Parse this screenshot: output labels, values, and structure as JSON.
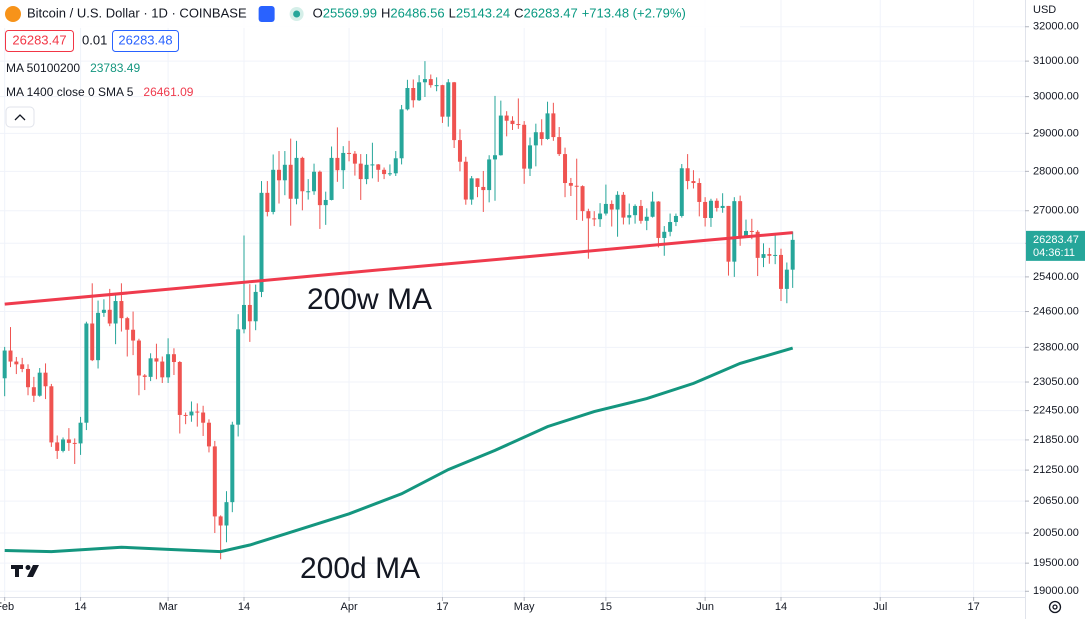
{
  "chart_data": {
    "type": "candlestick",
    "title": "Bitcoin / U.S. Dollar · 1D · COINBASE",
    "ohlc_legend": [
      {
        "label": "O",
        "value": "25569.99"
      },
      {
        "label": "H",
        "value": "26486.56"
      },
      {
        "label": "L",
        "value": "25143.24"
      },
      {
        "label": "C",
        "value": "26283.47"
      }
    ],
    "change": "+713.48 (+2.79%)",
    "bid": "26283.47",
    "spread": "0.01",
    "ask": "26283.48",
    "currency": "USD",
    "last_price_label": "26283.47",
    "countdown": "04:36:11",
    "up_color": "#26a69a",
    "down_color": "#ef5350",
    "log_scale": true,
    "grid": true,
    "x": [
      32,
      33,
      34,
      35,
      36,
      37,
      38,
      39,
      40,
      41,
      42,
      43,
      44,
      45,
      46,
      47,
      48,
      49,
      50,
      51,
      52,
      53,
      54,
      55,
      56,
      57,
      58,
      59,
      60,
      61,
      62,
      63,
      64,
      65,
      66,
      67,
      68,
      69,
      70,
      71,
      72,
      73,
      74,
      75,
      76,
      77,
      78,
      79,
      80,
      81,
      82,
      83,
      84,
      85,
      86,
      87,
      88,
      89,
      90,
      91,
      92,
      93,
      94,
      95,
      96,
      97,
      98,
      99,
      100,
      101,
      102,
      103,
      104,
      105,
      106,
      107,
      108,
      109,
      110,
      111,
      112,
      113,
      114,
      115,
      116,
      117,
      118,
      119,
      120,
      121,
      122,
      123,
      124,
      125,
      126,
      127,
      128,
      129,
      130,
      131,
      132,
      133,
      134,
      135,
      136,
      137,
      138,
      139,
      140,
      141,
      142,
      143,
      144,
      145,
      146,
      147,
      148,
      149,
      150,
      151,
      152,
      153,
      154,
      155,
      156,
      157,
      158,
      159,
      160,
      161,
      162,
      163,
      164,
      165,
      166,
      167
    ],
    "open": [
      23130,
      23730,
      23490,
      23430,
      23330,
      22940,
      22760,
      23250,
      22960,
      21800,
      21630,
      21860,
      21790,
      21780,
      22200,
      24330,
      23520,
      24570,
      24640,
      24330,
      24840,
      24450,
      24190,
      23950,
      23190,
      23160,
      23560,
      23490,
      23150,
      23650,
      23480,
      22360,
      22350,
      22430,
      22410,
      22200,
      21720,
      20360,
      20190,
      20630,
      22160,
      24200,
      24750,
      24380,
      25050,
      27450,
      26970,
      28040,
      27770,
      28170,
      27300,
      28350,
      27490,
      27490,
      27990,
      27140,
      27270,
      28350,
      28030,
      28480,
      28460,
      28200,
      27800,
      28170,
      28180,
      28040,
      27930,
      27950,
      28340,
      29650,
      30240,
      29900,
      30400,
      30490,
      30320,
      30320,
      29450,
      30400,
      28820,
      28250,
      27280,
      27820,
      27600,
      27520,
      28310,
      28420,
      29480,
      29340,
      29250,
      29230,
      28070,
      28680,
      29030,
      28850,
      29540,
      28900,
      28450,
      27700,
      27630,
      27620,
      26990,
      26810,
      26790,
      26930,
      27170,
      27030,
      27400,
      26830,
      26890,
      27120,
      26750,
      26850,
      27230,
      26330,
      26480,
      26720,
      26870,
      28080,
      27750,
      27700,
      27220,
      26820,
      27250,
      27070,
      27120,
      25760,
      27240,
      26350,
      26500,
      26480,
      25850,
      25940,
      25900,
      25920,
      25120,
      25569.99
    ],
    "high": [
      23810,
      24250,
      23590,
      23570,
      23430,
      23160,
      23350,
      23450,
      23010,
      21940,
      21900,
      22090,
      21880,
      22320,
      24370,
      25250,
      24850,
      24880,
      25120,
      25000,
      25250,
      24480,
      24600,
      23990,
      23220,
      23670,
      23880,
      23600,
      24000,
      23780,
      23500,
      22410,
      22640,
      22600,
      22550,
      22270,
      21830,
      20380,
      20840,
      22220,
      24540,
      26390,
      25230,
      25220,
      27750,
      27750,
      28440,
      28530,
      28530,
      28860,
      28800,
      28380,
      27800,
      28200,
      28020,
      27480,
      28650,
      29160,
      28660,
      28800,
      28530,
      28450,
      28450,
      28750,
      28190,
      28100,
      28180,
      28530,
      29770,
      30470,
      30480,
      30600,
      31000,
      30620,
      30540,
      30330,
      30490,
      30410,
      29110,
      28380,
      27880,
      27820,
      28010,
      28420,
      30020,
      29890,
      29600,
      29460,
      29950,
      29330,
      28890,
      29260,
      29380,
      29860,
      29830,
      29170,
      28620,
      27830,
      28330,
      27640,
      27050,
      26990,
      27190,
      27660,
      27260,
      27490,
      27470,
      27180,
      27160,
      27270,
      27060,
      27480,
      27240,
      26620,
      26930,
      26930,
      28190,
      28450,
      28030,
      27820,
      27340,
      27300,
      27310,
      27440,
      27120,
      27340,
      27380,
      26780,
      26800,
      26520,
      26200,
      26090,
      26400,
      26070,
      25740,
      26486.56
    ],
    "low": [
      22750,
      23370,
      23220,
      23260,
      22770,
      22630,
      22740,
      22690,
      21710,
      21470,
      21600,
      21630,
      21370,
      21550,
      22050,
      23500,
      23340,
      24480,
      24270,
      23870,
      24150,
      23600,
      23630,
      22770,
      22880,
      23070,
      23110,
      23030,
      23030,
      23200,
      21980,
      22170,
      22220,
      22120,
      21930,
      21600,
      20050,
      19570,
      19880,
      20440,
      21920,
      24110,
      23920,
      24180,
      24930,
      26860,
      26910,
      27180,
      27390,
      26630,
      27160,
      27010,
      27280,
      27400,
      26550,
      26650,
      27260,
      27730,
      27550,
      28260,
      27890,
      27270,
      27670,
      27820,
      27730,
      27800,
      27880,
      27880,
      28180,
      29620,
      29700,
      29880,
      29990,
      30250,
      30150,
      29280,
      29180,
      28610,
      28000,
      27150,
      27150,
      27340,
      26970,
      27210,
      27250,
      28410,
      28920,
      29090,
      29120,
      27680,
      27880,
      28130,
      28680,
      28830,
      28800,
      28400,
      27340,
      27370,
      26770,
      26750,
      25830,
      26620,
      26600,
      26880,
      26610,
      26360,
      26660,
      26660,
      26680,
      26680,
      26520,
      26830,
      26100,
      25900,
      26370,
      26620,
      26830,
      27540,
      27560,
      26860,
      26610,
      26600,
      26980,
      26950,
      25430,
      25400,
      26140,
      26350,
      26300,
      25420,
      25630,
      25710,
      25700,
      24840,
      24790,
      25143.24
    ],
    "close": [
      23730,
      23490,
      23430,
      23330,
      22940,
      22760,
      23250,
      22960,
      21800,
      21630,
      21860,
      21790,
      21780,
      22200,
      24330,
      23520,
      24570,
      24640,
      24330,
      24840,
      24450,
      24190,
      23950,
      23190,
      23160,
      23560,
      23490,
      23150,
      23650,
      23480,
      22360,
      22350,
      22430,
      22410,
      22200,
      21720,
      20360,
      20190,
      20630,
      22160,
      24200,
      24750,
      24380,
      25050,
      27450,
      26970,
      28040,
      27770,
      28170,
      27300,
      28350,
      27490,
      27490,
      27990,
      27140,
      27270,
      28350,
      28030,
      28480,
      28460,
      28200,
      27800,
      28170,
      28180,
      28040,
      27930,
      27950,
      28340,
      29650,
      30240,
      29900,
      30400,
      30490,
      30320,
      30320,
      29450,
      30400,
      28820,
      28250,
      27280,
      27820,
      27600,
      27520,
      28310,
      28420,
      29480,
      29340,
      29250,
      29230,
      28070,
      28680,
      29030,
      28850,
      29540,
      28900,
      28450,
      27700,
      27630,
      27620,
      26990,
      26810,
      26790,
      26930,
      27170,
      27030,
      27400,
      26830,
      26890,
      27120,
      26750,
      26850,
      27230,
      26330,
      26480,
      26720,
      26870,
      28080,
      27750,
      27700,
      27220,
      26820,
      27250,
      27070,
      27120,
      25760,
      27240,
      26350,
      26500,
      26480,
      25850,
      25940,
      25900,
      25920,
      25120,
      25569.99,
      26283.47
    ],
    "lines": [
      {
        "name": "MA 1400 close 0 SMA 5",
        "last_label": "26461.09",
        "color": "#ef3b4d",
        "x": [
          32,
          60,
          91,
          121,
          152,
          167
        ],
        "values": [
          24770,
          25110,
          25500,
          25870,
          26270,
          26461.09
        ]
      },
      {
        "name": "MA 50100200",
        "last_label": "23783.49",
        "color": "#14967f",
        "x": [
          32,
          40,
          52,
          60,
          69,
          74,
          80,
          91,
          100,
          108,
          116,
          125,
          133,
          142,
          150,
          158,
          167
        ],
        "values": [
          19730,
          19710,
          19790,
          19750,
          19710,
          19830,
          20030,
          20410,
          20790,
          21260,
          21640,
          22120,
          22430,
          22700,
          23020,
          23450,
          23783.49
        ]
      }
    ],
    "annotations": [
      {
        "text": "200w MA",
        "color": "#ef3b4d"
      },
      {
        "text": "200d MA",
        "color": "#14967f"
      }
    ],
    "xlim": [
      31.2,
      206.8
    ],
    "xticks": [
      {
        "value": 32,
        "label": "Feb"
      },
      {
        "value": 45,
        "label": "14"
      },
      {
        "value": 60,
        "label": "Mar"
      },
      {
        "value": 73,
        "label": "14"
      },
      {
        "value": 91,
        "label": "Apr"
      },
      {
        "value": 107,
        "label": "17"
      },
      {
        "value": 121,
        "label": "May"
      },
      {
        "value": 135,
        "label": "15"
      },
      {
        "value": 152,
        "label": "Jun"
      },
      {
        "value": 165,
        "label": "14"
      },
      {
        "value": 182,
        "label": "Jul"
      },
      {
        "value": 198,
        "label": "17"
      }
    ],
    "ylim": [
      18900,
      32800
    ],
    "yticks": [
      {
        "value": 32000,
        "label": "32000.00"
      },
      {
        "value": 31000,
        "label": "31000.00"
      },
      {
        "value": 30000,
        "label": "30000.00"
      },
      {
        "value": 29000,
        "label": "29000.00"
      },
      {
        "value": 28000,
        "label": "28000.00"
      },
      {
        "value": 27000,
        "label": "27000.00"
      },
      {
        "value": 26200,
        "label": "26200.00"
      },
      {
        "value": 25400,
        "label": "25400.00"
      },
      {
        "value": 24600,
        "label": "24600.00"
      },
      {
        "value": 23800,
        "label": "23800.00"
      },
      {
        "value": 23050,
        "label": "23050.00"
      },
      {
        "value": 22450,
        "label": "22450.00"
      },
      {
        "value": 21850,
        "label": "21850.00"
      },
      {
        "value": 21250,
        "label": "21250.00"
      },
      {
        "value": 20650,
        "label": "20650.00"
      },
      {
        "value": 20050,
        "label": "20050.00"
      },
      {
        "value": 19500,
        "label": "19500.00"
      },
      {
        "value": 19000,
        "label": "19000.00"
      }
    ]
  }
}
